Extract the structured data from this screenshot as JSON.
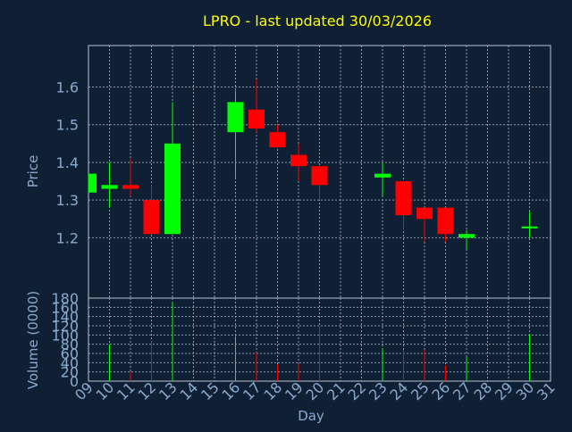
{
  "colors": {
    "background": "#0f2034",
    "axis_text": "#8aaad0",
    "title": "#ffff00",
    "grid": "#8c9cb0",
    "frame": "#b8c4d0",
    "up": "#00ff00",
    "down": "#ff0000"
  },
  "chart_data": [
    {
      "type": "candlestick",
      "title": "LPRO - last updated 30/03/2026",
      "ylabel": "Price",
      "ylim": [
        1.04,
        1.71
      ],
      "yticks": [
        1.2,
        1.3,
        1.4,
        1.5,
        1.6
      ],
      "ytick_labels": [
        "1.2",
        "1.3",
        "1.4",
        "1.5",
        "1.6"
      ],
      "grid": true,
      "candles": [
        {
          "day": "09",
          "open": 1.32,
          "high": 1.37,
          "low": 1.32,
          "close": 1.37
        },
        {
          "day": "10",
          "open": 1.33,
          "high": 1.4,
          "low": 1.28,
          "close": 1.34
        },
        {
          "day": "11",
          "open": 1.34,
          "high": 1.41,
          "low": 1.31,
          "close": 1.33
        },
        {
          "day": "12",
          "open": 1.3,
          "high": 1.34,
          "low": 1.21,
          "close": 1.21
        },
        {
          "day": "13",
          "open": 1.21,
          "high": 1.56,
          "low": 1.21,
          "close": 1.45
        },
        {
          "day": "16",
          "open": 1.48,
          "high": 1.59,
          "low": 1.36,
          "close": 1.56
        },
        {
          "day": "17",
          "open": 1.54,
          "high": 1.62,
          "low": 1.48,
          "close": 1.49
        },
        {
          "day": "18",
          "open": 1.48,
          "high": 1.5,
          "low": 1.44,
          "close": 1.44
        },
        {
          "day": "19",
          "open": 1.42,
          "high": 1.45,
          "low": 1.35,
          "close": 1.39
        },
        {
          "day": "20",
          "open": 1.39,
          "high": 1.39,
          "low": 1.3,
          "close": 1.34
        },
        {
          "day": "23",
          "open": 1.36,
          "high": 1.4,
          "low": 1.31,
          "close": 1.37
        },
        {
          "day": "24",
          "open": 1.35,
          "high": 1.35,
          "low": 1.22,
          "close": 1.26
        },
        {
          "day": "25",
          "open": 1.28,
          "high": 1.28,
          "low": 1.19,
          "close": 1.25
        },
        {
          "day": "26",
          "open": 1.28,
          "high": 1.28,
          "low": 1.19,
          "close": 1.21
        },
        {
          "day": "27",
          "open": 1.2,
          "high": 1.22,
          "low": 1.17,
          "close": 1.21
        },
        {
          "day": "30",
          "open": 1.225,
          "high": 1.27,
          "low": 1.2,
          "close": 1.23
        }
      ]
    },
    {
      "type": "bar",
      "ylabel": "Volume (0000)",
      "xlabel": "Day",
      "ylim": [
        0,
        180
      ],
      "yticks": [
        0,
        20,
        40,
        60,
        80,
        100,
        120,
        140,
        160,
        180
      ],
      "ytick_labels": [
        "0",
        "20",
        "40",
        "60",
        "80",
        "100",
        "120",
        "140",
        "160",
        "180"
      ],
      "x_categories": [
        "09",
        "10",
        "11",
        "12",
        "13",
        "14",
        "15",
        "16",
        "17",
        "18",
        "19",
        "20",
        "21",
        "22",
        "23",
        "24",
        "25",
        "26",
        "27",
        "28",
        "29",
        "30",
        "31"
      ],
      "grid": true,
      "bars": [
        {
          "day": "09",
          "value": 0,
          "direction": "up"
        },
        {
          "day": "10",
          "value": 80,
          "direction": "up"
        },
        {
          "day": "11",
          "value": 20,
          "direction": "down"
        },
        {
          "day": "12",
          "value": 86,
          "direction": "down"
        },
        {
          "day": "13",
          "value": 172,
          "direction": "up"
        },
        {
          "day": "16",
          "value": 98,
          "direction": "up"
        },
        {
          "day": "17",
          "value": 62,
          "direction": "down"
        },
        {
          "day": "18",
          "value": 36,
          "direction": "down"
        },
        {
          "day": "19",
          "value": 38,
          "direction": "down"
        },
        {
          "day": "20",
          "value": 117,
          "direction": "down"
        },
        {
          "day": "23",
          "value": 70,
          "direction": "up"
        },
        {
          "day": "24",
          "value": 68,
          "direction": "down"
        },
        {
          "day": "25",
          "value": 68,
          "direction": "down"
        },
        {
          "day": "26",
          "value": 34,
          "direction": "down"
        },
        {
          "day": "27",
          "value": 52,
          "direction": "up"
        },
        {
          "day": "30",
          "value": 102,
          "direction": "up"
        }
      ]
    }
  ]
}
